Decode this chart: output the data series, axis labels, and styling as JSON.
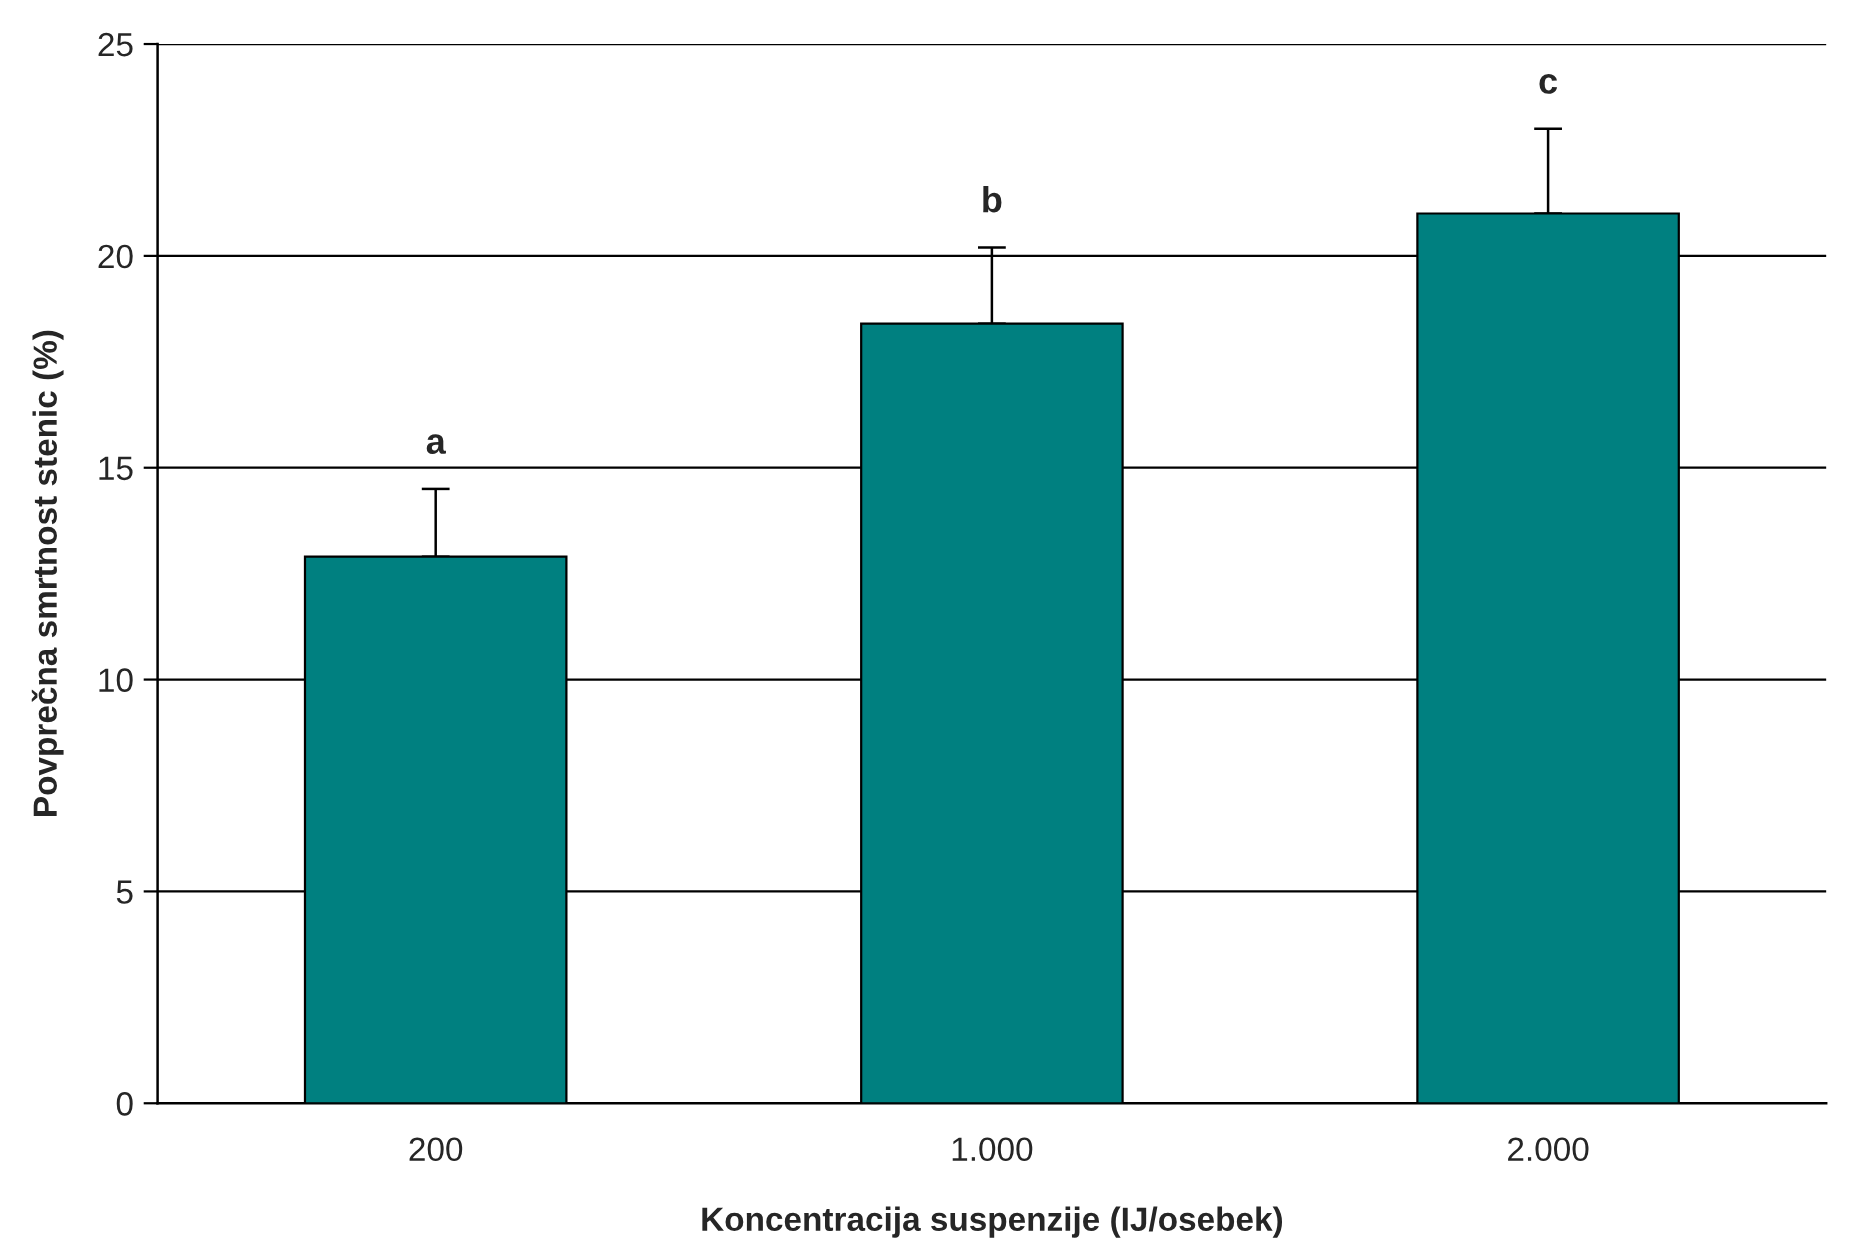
{
  "chart_data": {
    "type": "bar",
    "xlabel": "Koncentracija suspenzije (IJ/osebek)",
    "ylabel": "Povprečna smrtnost stenic (%)",
    "categories": [
      "200",
      "1.000",
      "2.000"
    ],
    "values": [
      12.9,
      18.4,
      21.0
    ],
    "errors": [
      [
        12.9,
        14.5
      ],
      [
        18.4,
        20.2
      ],
      [
        21.0,
        23.0
      ]
    ],
    "color": "#008080",
    "ylim": [
      0,
      25
    ],
    "yticks": [
      0,
      5,
      10,
      15,
      20,
      25
    ],
    "grid": "y",
    "annotations": [
      "a",
      "b",
      "c"
    ]
  }
}
